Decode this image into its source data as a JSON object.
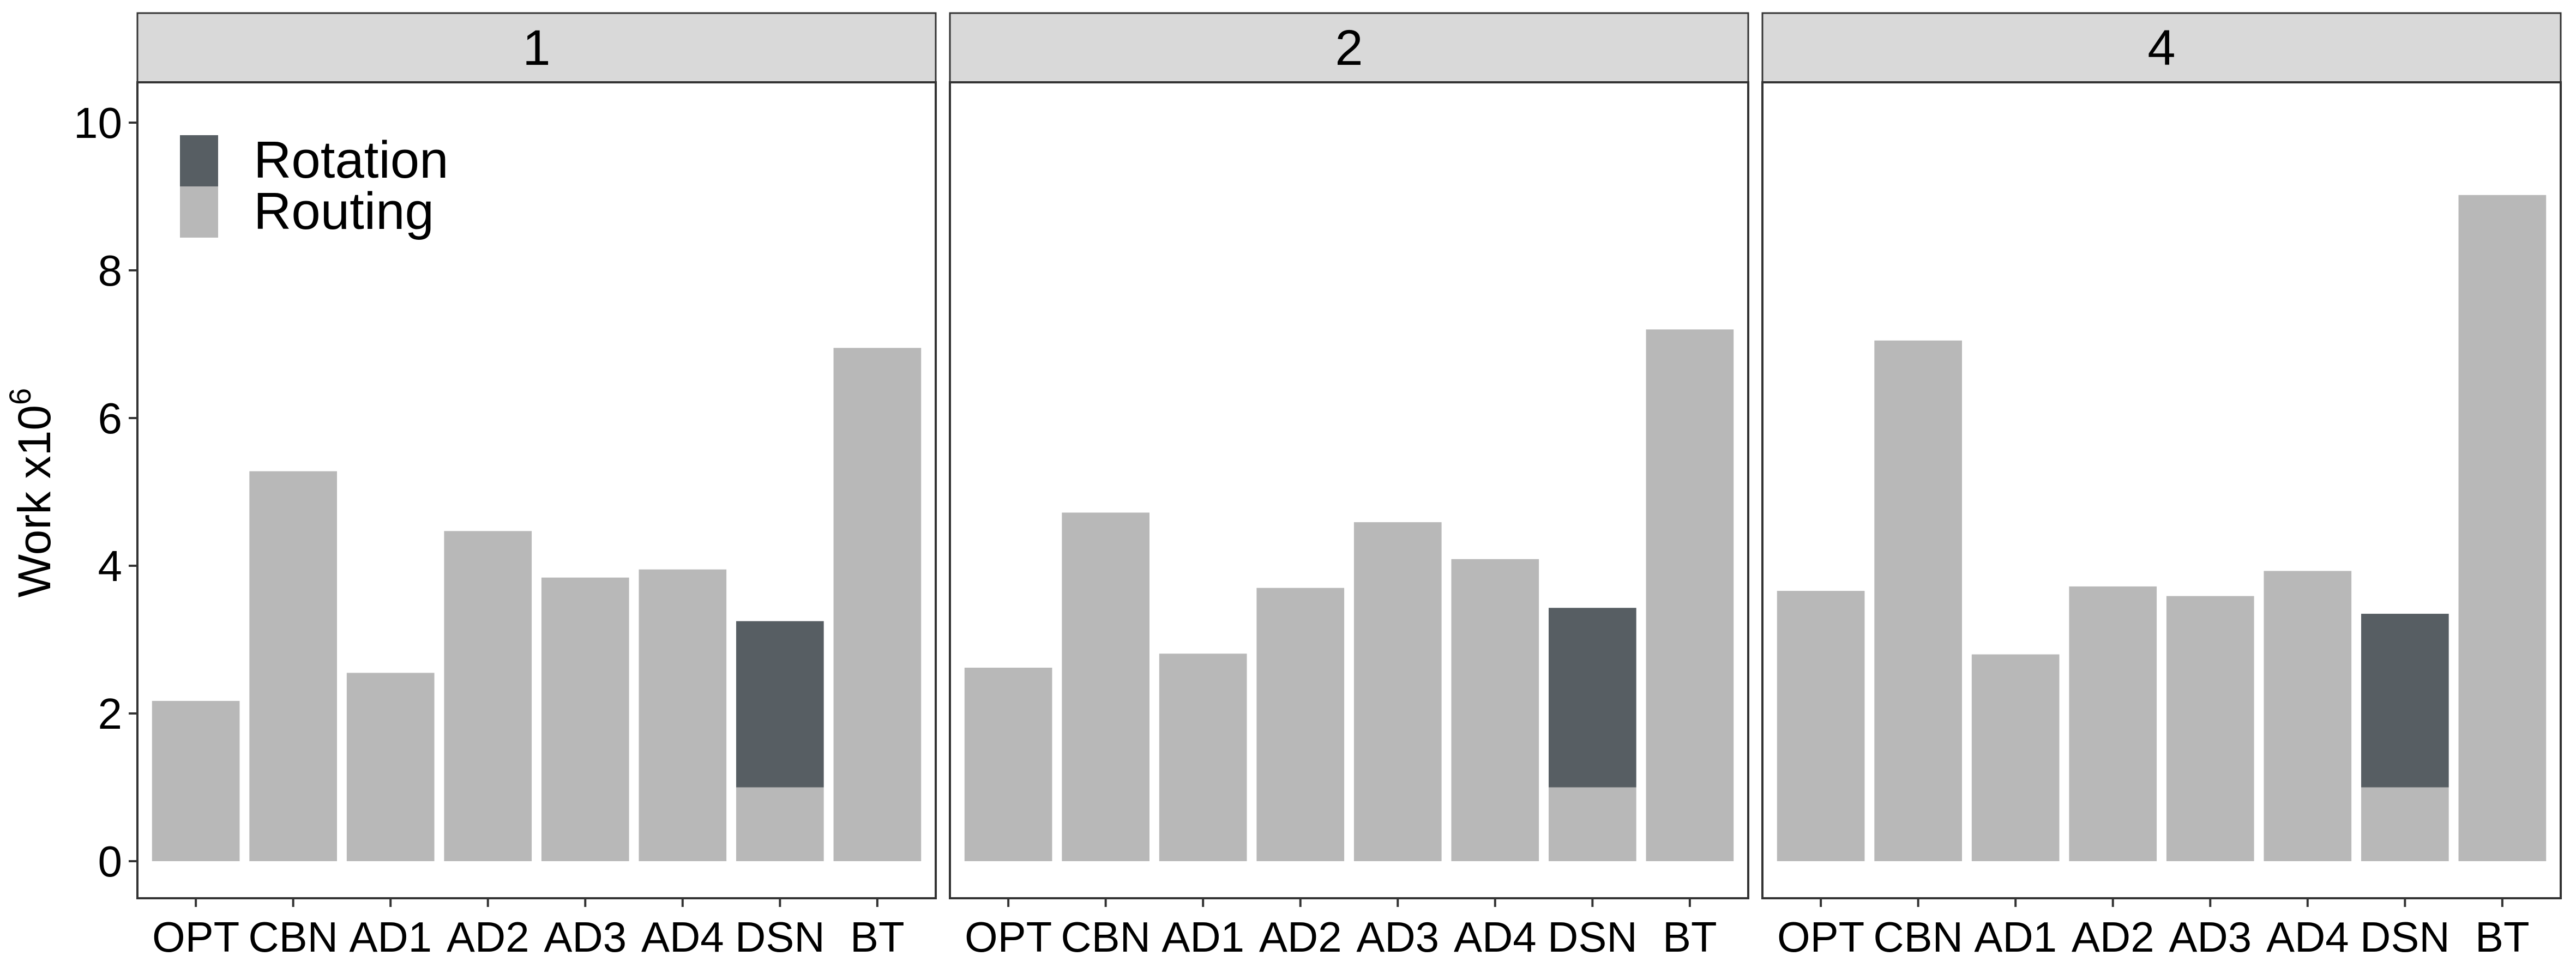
{
  "chart_data": {
    "type": "bar",
    "stacked": true,
    "ylabel": "Work x10",
    "ylabel_superscript": "6",
    "ylim": [
      0,
      10.8
    ],
    "yticks": [
      0,
      2,
      4,
      6,
      8,
      10
    ],
    "categories": [
      "OPT",
      "CBN",
      "AD1",
      "AD2",
      "AD3",
      "AD4",
      "DSN",
      "BT"
    ],
    "legend": {
      "position": "top-left inside first panel",
      "entries": [
        {
          "key": "rotation",
          "label": "Rotation"
        },
        {
          "key": "routing",
          "label": "Routing"
        }
      ]
    },
    "colors": {
      "routing": "#b8b8b8",
      "rotation": "#575e63",
      "strip": "#d9d9d9",
      "panel_border": "#333333"
    },
    "facets": [
      {
        "label": "1",
        "series": [
          {
            "name": "Routing",
            "values": [
              2.17,
              5.28,
              2.55,
              4.47,
              3.84,
              3.95,
              1.0,
              6.95
            ]
          },
          {
            "name": "Rotation",
            "values": [
              0,
              0,
              0,
              0,
              0,
              0,
              2.25,
              0
            ]
          }
        ]
      },
      {
        "label": "2",
        "series": [
          {
            "name": "Routing",
            "values": [
              2.62,
              4.72,
              2.81,
              3.7,
              4.59,
              4.09,
              1.0,
              7.2
            ]
          },
          {
            "name": "Rotation",
            "values": [
              0,
              0,
              0,
              0,
              0,
              0,
              2.43,
              0
            ]
          }
        ]
      },
      {
        "label": "4",
        "series": [
          {
            "name": "Routing",
            "values": [
              3.66,
              7.05,
              2.8,
              3.72,
              3.59,
              3.93,
              1.0,
              9.02
            ]
          },
          {
            "name": "Rotation",
            "values": [
              0,
              0,
              0,
              0,
              0,
              0,
              2.35,
              0
            ]
          }
        ]
      }
    ]
  }
}
